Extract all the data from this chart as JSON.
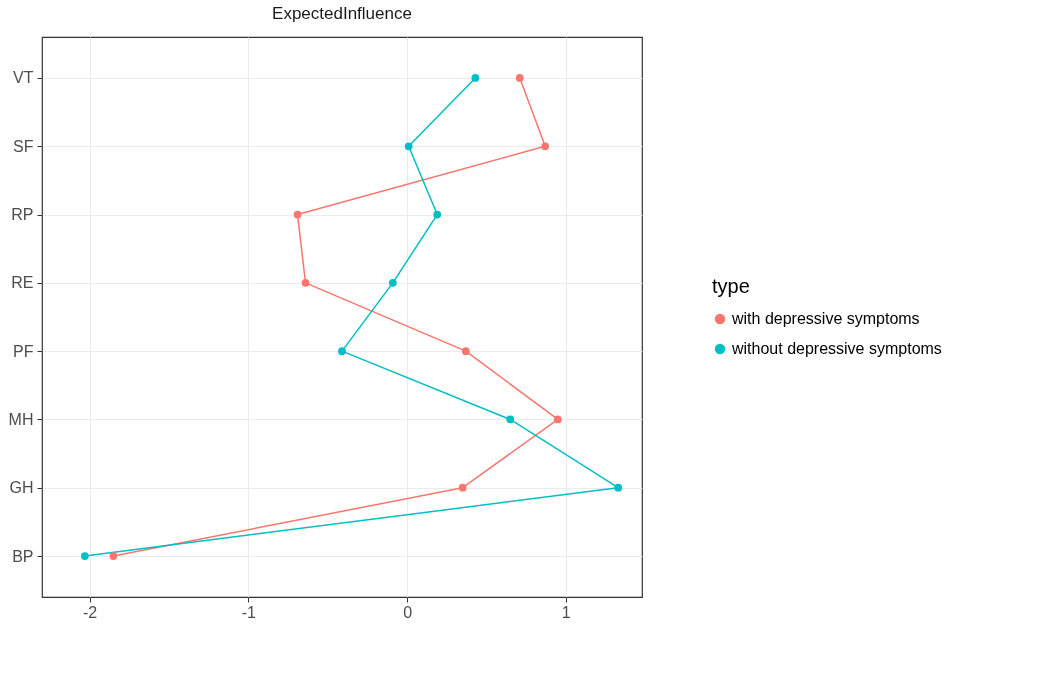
{
  "chart_data": {
    "type": "line",
    "orientation": "horizontal",
    "title": "ExpectedInfluence",
    "legend_title": "type",
    "categories": [
      "VT",
      "SF",
      "RP",
      "RE",
      "PF",
      "MH",
      "GH",
      "BP"
    ],
    "series": [
      {
        "name": "with depressive symptoms",
        "color": "#f8766d",
        "values": [
          0.71,
          0.87,
          -0.69,
          -0.64,
          0.37,
          0.95,
          0.35,
          -1.85
        ]
      },
      {
        "name": "without depressive symptoms",
        "color": "#00bfc4",
        "values": [
          0.43,
          0.01,
          0.19,
          -0.09,
          -0.41,
          0.65,
          1.33,
          -2.03
        ]
      }
    ],
    "xlim": [
      -2.3,
      1.48
    ],
    "xticks": [
      -2,
      -1,
      0,
      1
    ],
    "grid": true,
    "legend": "right",
    "marker": "circle",
    "line_style": "solid"
  }
}
